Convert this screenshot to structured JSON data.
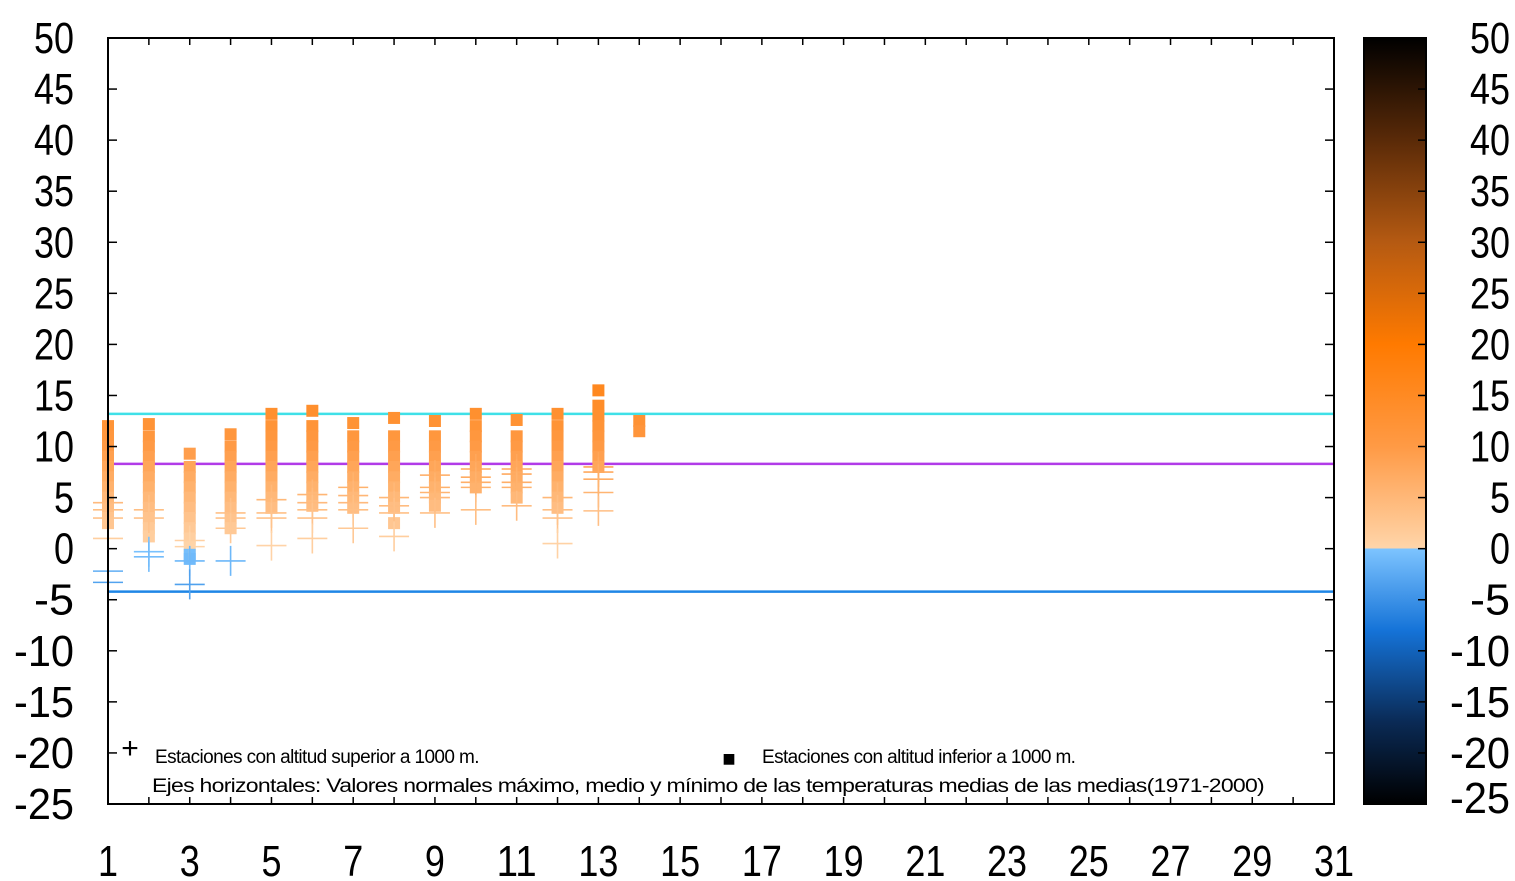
{
  "chart_data": {
    "type": "scatter",
    "title": "",
    "xlabel": "",
    "ylabel": "",
    "xlim": [
      1,
      31
    ],
    "ylim": [
      -25,
      50
    ],
    "x_ticks": [
      1,
      3,
      5,
      7,
      9,
      11,
      13,
      15,
      17,
      19,
      21,
      23,
      25,
      27,
      29,
      31
    ],
    "y_ticks": [
      -25,
      -20,
      -15,
      -10,
      -5,
      0,
      5,
      10,
      15,
      20,
      25,
      30,
      35,
      40,
      45,
      50
    ],
    "grid": false,
    "reference_lines": [
      {
        "value": 13.2,
        "color": "#3fe0e8"
      },
      {
        "value": 8.3,
        "color": "#b13be8"
      },
      {
        "value": -4.2,
        "color": "#1f86e6"
      }
    ],
    "series": [
      {
        "marker": "square",
        "points": [
          [
            1,
            12.0
          ],
          [
            1,
            11.0
          ],
          [
            1,
            10.0
          ],
          [
            1,
            9.0
          ],
          [
            1,
            8.0
          ],
          [
            1,
            7.0
          ],
          [
            1,
            6.0
          ],
          [
            1,
            5.0
          ],
          [
            1,
            4.0
          ],
          [
            1,
            3.0
          ],
          [
            1,
            2.5
          ],
          [
            2,
            12.2
          ],
          [
            2,
            11.0
          ],
          [
            2,
            10.0
          ],
          [
            2,
            9.0
          ],
          [
            2,
            8.0
          ],
          [
            2,
            7.0
          ],
          [
            2,
            6.0
          ],
          [
            2,
            5.0
          ],
          [
            2,
            4.0
          ],
          [
            2,
            3.0
          ],
          [
            2,
            2.0
          ],
          [
            2,
            1.2
          ],
          [
            3,
            9.3
          ],
          [
            3,
            8.0
          ],
          [
            3,
            7.0
          ],
          [
            3,
            6.0
          ],
          [
            3,
            5.0
          ],
          [
            3,
            4.0
          ],
          [
            3,
            3.0
          ],
          [
            3,
            2.0
          ],
          [
            3,
            1.0
          ],
          [
            3,
            0.2
          ],
          [
            3,
            -0.6
          ],
          [
            3,
            -1.0
          ],
          [
            4,
            11.2
          ],
          [
            4,
            10.0
          ],
          [
            4,
            9.0
          ],
          [
            4,
            8.0
          ],
          [
            4,
            7.0
          ],
          [
            4,
            6.0
          ],
          [
            4,
            5.0
          ],
          [
            4,
            4.0
          ],
          [
            4,
            3.0
          ],
          [
            4,
            2.0
          ],
          [
            5,
            13.2
          ],
          [
            5,
            12.0
          ],
          [
            5,
            11.0
          ],
          [
            5,
            10.0
          ],
          [
            5,
            9.0
          ],
          [
            5,
            8.0
          ],
          [
            5,
            7.0
          ],
          [
            5,
            6.0
          ],
          [
            5,
            5.0
          ],
          [
            5,
            4.0
          ],
          [
            6,
            13.5
          ],
          [
            6,
            12.0
          ],
          [
            6,
            11.0
          ],
          [
            6,
            10.0
          ],
          [
            6,
            9.0
          ],
          [
            6,
            8.0
          ],
          [
            6,
            7.0
          ],
          [
            6,
            6.0
          ],
          [
            6,
            5.0
          ],
          [
            6,
            4.2
          ],
          [
            7,
            12.3
          ],
          [
            7,
            11.0
          ],
          [
            7,
            10.0
          ],
          [
            7,
            9.0
          ],
          [
            7,
            8.0
          ],
          [
            7,
            7.0
          ],
          [
            7,
            6.0
          ],
          [
            7,
            5.0
          ],
          [
            7,
            4.0
          ],
          [
            8,
            12.8
          ],
          [
            8,
            11.0
          ],
          [
            8,
            10.0
          ],
          [
            8,
            9.0
          ],
          [
            8,
            8.0
          ],
          [
            8,
            7.0
          ],
          [
            8,
            6.0
          ],
          [
            8,
            5.0
          ],
          [
            8,
            4.0
          ],
          [
            8,
            2.5
          ],
          [
            9,
            12.5
          ],
          [
            9,
            11.0
          ],
          [
            9,
            10.0
          ],
          [
            9,
            9.0
          ],
          [
            9,
            8.0
          ],
          [
            9,
            7.0
          ],
          [
            9,
            6.0
          ],
          [
            9,
            5.0
          ],
          [
            9,
            4.2
          ],
          [
            10,
            13.2
          ],
          [
            10,
            12.0
          ],
          [
            10,
            11.0
          ],
          [
            10,
            10.0
          ],
          [
            10,
            9.0
          ],
          [
            10,
            8.0
          ],
          [
            10,
            7.0
          ],
          [
            10,
            6.0
          ],
          [
            11,
            12.6
          ],
          [
            11,
            11.0
          ],
          [
            11,
            10.0
          ],
          [
            11,
            9.0
          ],
          [
            11,
            8.0
          ],
          [
            11,
            7.0
          ],
          [
            11,
            6.0
          ],
          [
            11,
            5.0
          ],
          [
            12,
            13.2
          ],
          [
            12,
            12.0
          ],
          [
            12,
            11.0
          ],
          [
            12,
            10.0
          ],
          [
            12,
            9.0
          ],
          [
            12,
            8.0
          ],
          [
            12,
            7.0
          ],
          [
            12,
            6.0
          ],
          [
            12,
            5.0
          ],
          [
            12,
            4.0
          ],
          [
            13,
            15.5
          ],
          [
            13,
            14.0
          ],
          [
            13,
            13.0
          ],
          [
            13,
            12.0
          ],
          [
            13,
            11.0
          ],
          [
            13,
            10.0
          ],
          [
            13,
            9.0
          ],
          [
            13,
            8.0
          ],
          [
            14,
            12.5
          ],
          [
            14,
            11.5
          ]
        ]
      },
      {
        "marker": "plus",
        "points": [
          [
            1,
            4.5
          ],
          [
            1,
            3.8
          ],
          [
            1,
            3.0
          ],
          [
            1,
            1.0
          ],
          [
            1,
            -2.2
          ],
          [
            1,
            -3.3
          ],
          [
            2,
            3.8
          ],
          [
            2,
            3.0
          ],
          [
            2,
            -0.3
          ],
          [
            2,
            -0.8
          ],
          [
            3,
            0.8
          ],
          [
            3,
            0.2
          ],
          [
            3,
            -1.2
          ],
          [
            3,
            -3.5
          ],
          [
            4,
            3.5
          ],
          [
            4,
            3.0
          ],
          [
            4,
            2.0
          ],
          [
            4,
            -1.2
          ],
          [
            5,
            4.8
          ],
          [
            5,
            3.5
          ],
          [
            5,
            3.0
          ],
          [
            5,
            0.3
          ],
          [
            6,
            5.3
          ],
          [
            6,
            4.5
          ],
          [
            6,
            3.8
          ],
          [
            6,
            3.0
          ],
          [
            6,
            1.0
          ],
          [
            7,
            6.0
          ],
          [
            7,
            5.2
          ],
          [
            7,
            4.5
          ],
          [
            7,
            3.8
          ],
          [
            7,
            2.0
          ],
          [
            8,
            5.0
          ],
          [
            8,
            4.2
          ],
          [
            8,
            3.5
          ],
          [
            8,
            1.2
          ],
          [
            9,
            7.2
          ],
          [
            9,
            6.0
          ],
          [
            9,
            5.5
          ],
          [
            9,
            5.0
          ],
          [
            9,
            3.5
          ],
          [
            10,
            7.8
          ],
          [
            10,
            7.0
          ],
          [
            10,
            6.5
          ],
          [
            10,
            6.0
          ],
          [
            10,
            3.8
          ],
          [
            11,
            7.8
          ],
          [
            11,
            7.3
          ],
          [
            11,
            6.5
          ],
          [
            11,
            6.0
          ],
          [
            11,
            4.2
          ],
          [
            12,
            5.0
          ],
          [
            12,
            3.8
          ],
          [
            12,
            3.0
          ],
          [
            12,
            0.5
          ],
          [
            13,
            8.0
          ],
          [
            13,
            7.5
          ],
          [
            13,
            6.8
          ],
          [
            13,
            5.5
          ],
          [
            13,
            3.7
          ]
        ]
      }
    ],
    "colorbar": {
      "range": [
        -25,
        50
      ],
      "ticks": [
        -25,
        -20,
        -15,
        -10,
        -5,
        0,
        5,
        10,
        15,
        20,
        25,
        30,
        35,
        40,
        45,
        50
      ],
      "stops": [
        {
          "value": -25,
          "color": "#000000"
        },
        {
          "value": -17,
          "color": "#0a2a55"
        },
        {
          "value": -8,
          "color": "#1573d8"
        },
        {
          "value": 0,
          "color": "#7dc4ff"
        },
        {
          "value": 0.01,
          "color": "#ffd5aa"
        },
        {
          "value": 10,
          "color": "#ff9a45"
        },
        {
          "value": 20,
          "color": "#ff7a00"
        },
        {
          "value": 30,
          "color": "#b55a12"
        },
        {
          "value": 40,
          "color": "#5a2a08"
        },
        {
          "value": 50,
          "color": "#000000"
        }
      ]
    },
    "legend": {
      "plus_label": "Estaciones con altitud superior a 1000 m.",
      "square_label": "Estaciones con altitud inferior a 1000 m.",
      "note": "Ejes horizontales: Valores normales máximo, medio y mínimo de las temperaturas medias de las medias(1971-2000)",
      "plus_symbol": "+",
      "square_symbol": "■"
    }
  }
}
